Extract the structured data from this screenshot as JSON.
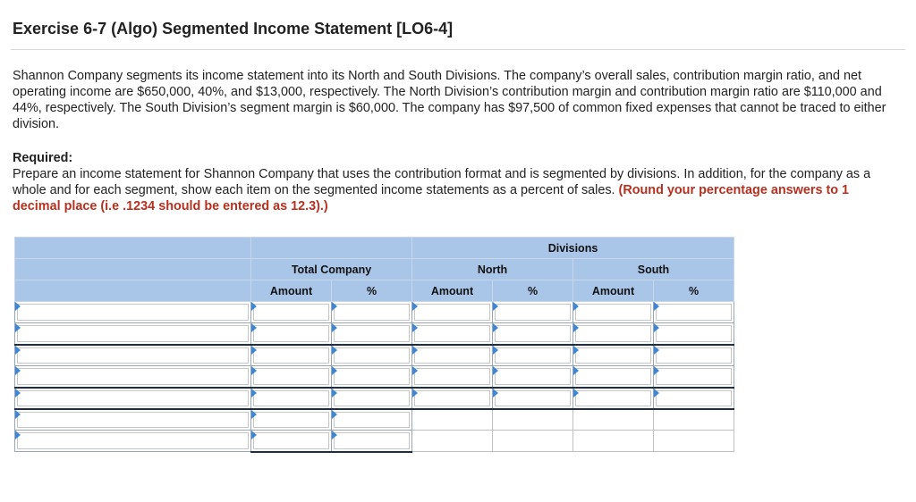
{
  "header": {
    "title": "Exercise 6-7 (Algo) Segmented Income Statement [LO6-4]"
  },
  "problem": {
    "text": "Shannon Company segments its income statement into its North and South Divisions. The company’s overall sales, contribution margin ratio, and net operating income are $650,000, 40%, and $13,000, respectively. The North Division’s contribution margin and contribution margin ratio are $110,000 and 44%, respectively. The South Division’s segment margin is $60,000. The company has $97,500 of common fixed expenses that cannot be traced to either division."
  },
  "required": {
    "heading": "Required:",
    "text": "Prepare an income statement for Shannon Company that uses the contribution format and is segmented by divisions. In addition, for the company as a whole and for each segment, show each item on the segmented income statements as a percent of sales.",
    "note": "(Round your percentage answers to 1 decimal place (i.e .1234 should be entered as 12.3).)"
  },
  "table": {
    "group_header": "Divisions",
    "total_company": "Total Company",
    "north": "North",
    "south": "South",
    "amount": "Amount",
    "percent": "%",
    "rows": 7
  },
  "colors": {
    "header_bg": "#a9c6e8",
    "accent_red": "#b7301f",
    "input_marker": "#3d87d6"
  }
}
